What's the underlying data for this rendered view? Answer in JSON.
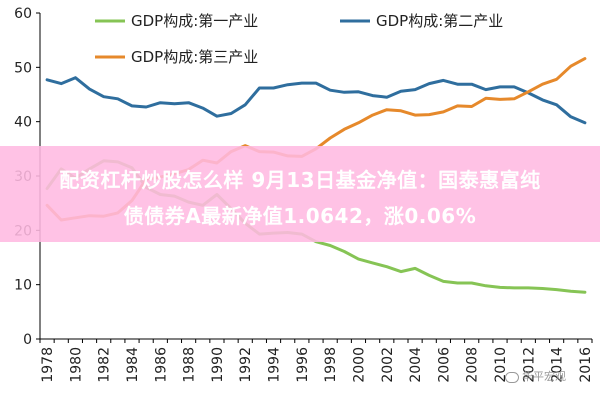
{
  "chart_data": {
    "type": "line",
    "title": "",
    "xlabel": "",
    "ylabel": "",
    "x": [
      1978,
      1979,
      1980,
      1981,
      1982,
      1983,
      1984,
      1985,
      1986,
      1987,
      1988,
      1989,
      1990,
      1991,
      1992,
      1993,
      1994,
      1995,
      1996,
      1997,
      1998,
      1999,
      2000,
      2001,
      2002,
      2003,
      2004,
      2005,
      2006,
      2007,
      2008,
      2009,
      2010,
      2011,
      2012,
      2013,
      2014,
      2015,
      2016
    ],
    "xticks": [
      1978,
      1980,
      1982,
      1984,
      1986,
      1988,
      1990,
      1992,
      1994,
      1996,
      1998,
      2000,
      2002,
      2004,
      2006,
      2008,
      2010,
      2012,
      2014,
      2016
    ],
    "yticks": [
      0,
      10,
      20,
      30,
      40,
      50,
      60
    ],
    "ylim": [
      0,
      60
    ],
    "grid": false,
    "legend_position": "top",
    "series": [
      {
        "name": "GDP构成:第一产业",
        "color": "#86c455",
        "values": [
          27.7,
          31.3,
          29.6,
          31.3,
          32.8,
          32.6,
          31.5,
          27.9,
          26.6,
          26.3,
          25.2,
          24.6,
          26.6,
          24.0,
          21.3,
          19.3,
          19.5,
          19.6,
          19.3,
          17.9,
          17.2,
          16.1,
          14.7,
          14.0,
          13.3,
          12.4,
          13.0,
          11.7,
          10.6,
          10.3,
          10.3,
          9.8,
          9.5,
          9.4,
          9.4,
          9.3,
          9.1,
          8.8,
          8.6
        ]
      },
      {
        "name": "GDP构成:第二产业",
        "color": "#2f6e9e",
        "values": [
          47.7,
          47.0,
          48.1,
          46.0,
          44.6,
          44.2,
          42.9,
          42.7,
          43.5,
          43.3,
          43.5,
          42.5,
          41.0,
          41.5,
          43.1,
          46.2,
          46.2,
          46.8,
          47.1,
          47.1,
          45.8,
          45.4,
          45.5,
          44.8,
          44.5,
          45.6,
          45.9,
          47.0,
          47.6,
          46.9,
          46.9,
          45.9,
          46.4,
          46.4,
          45.3,
          44.0,
          43.1,
          40.9,
          39.8
        ]
      },
      {
        "name": "GDP构成:第三产业",
        "color": "#e6892b",
        "values": [
          24.6,
          21.9,
          22.3,
          22.7,
          22.6,
          23.2,
          25.5,
          29.4,
          29.8,
          30.4,
          31.2,
          32.9,
          32.4,
          34.5,
          35.6,
          34.5,
          34.4,
          33.7,
          33.6,
          35.0,
          37.0,
          38.6,
          39.8,
          41.2,
          42.2,
          42.0,
          41.2,
          41.3,
          41.8,
          42.9,
          42.8,
          44.3,
          44.1,
          44.2,
          45.5,
          46.9,
          47.8,
          50.2,
          51.6
        ]
      }
    ]
  },
  "overlay": {
    "line1": "配资杠杆炒股怎么样 9月13日基金净值：国泰惠富纯",
    "line2": "债债券A最新净值1.0642，涨0.06%"
  },
  "watermark": {
    "text": "华平宏观"
  }
}
